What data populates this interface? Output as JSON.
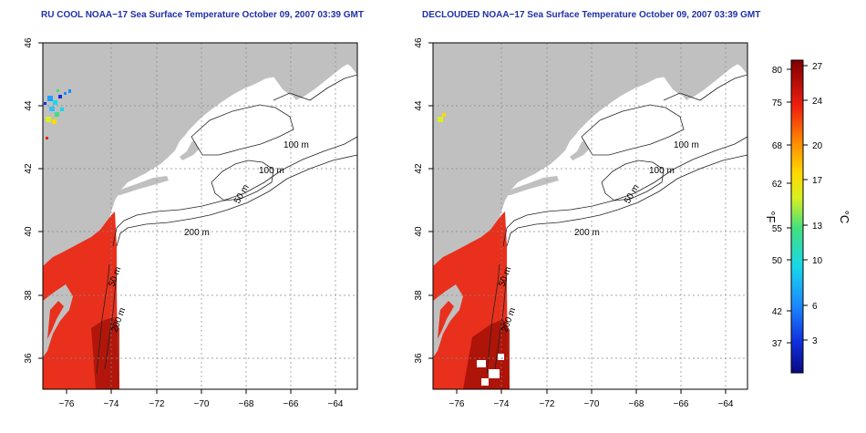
{
  "panels": [
    {
      "title": "RU COOL NOAA−17 Sea Surface Temperature October 09, 2007 03:39 GMT",
      "contour_labels": [
        "100 m",
        "100 m",
        "50 m",
        "200 m",
        "50 m",
        "200 m"
      ]
    },
    {
      "title": "DECLOUDED NOAA−17 Sea Surface Temperature October 09, 2007 03:39 GMT",
      "contour_labels": [
        "100 m",
        "100 m",
        "50 m",
        "200 m",
        "50 m",
        "200 m"
      ]
    }
  ],
  "axes": {
    "lon_ticks": [
      "−76",
      "−74",
      "−72",
      "−70",
      "−68",
      "−66",
      "−64"
    ],
    "lat_ticks": [
      "36",
      "38",
      "40",
      "42",
      "44",
      "46"
    ]
  },
  "colorbar": {
    "fahrenheit_label": "°F",
    "celsius_label": "°C",
    "fahrenheit_ticks": [
      "80",
      "75",
      "68",
      "62",
      "55",
      "50",
      "42",
      "37"
    ],
    "celsius_ticks": [
      "27",
      "24",
      "20",
      "17",
      "13",
      "10",
      "6",
      "3"
    ]
  },
  "colors": {
    "land": "#c0c0c0",
    "water": "#ffffff",
    "sst_warm": "#e8301c",
    "sst_hot": "#a81208",
    "title": "#1f2fa8"
  }
}
